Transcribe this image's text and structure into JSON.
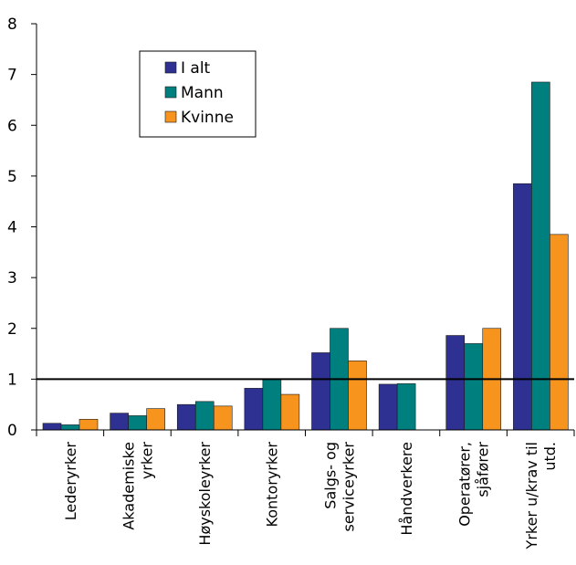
{
  "chart_data": {
    "type": "bar",
    "categories": [
      [
        "Lederyrker"
      ],
      [
        "Akademiske",
        "yrker"
      ],
      [
        "Høyskoleyrker"
      ],
      [
        "Kontoryrker"
      ],
      [
        "Salgs- og",
        "serviceyrker"
      ],
      [
        "Håndverkere"
      ],
      [
        "Operatører,",
        "sjåfører"
      ],
      [
        "Yrker u/krav til",
        "utd."
      ]
    ],
    "series": [
      {
        "name": "I alt",
        "color": "#2E3192",
        "values": [
          0.13,
          0.33,
          0.5,
          0.82,
          1.52,
          0.9,
          1.86,
          4.85
        ]
      },
      {
        "name": "Mann",
        "color": "#007F7F",
        "values": [
          0.1,
          0.28,
          0.56,
          1.01,
          2.0,
          0.91,
          1.7,
          6.85
        ]
      },
      {
        "name": "Kvinne",
        "color": "#F7941D",
        "values": [
          0.21,
          0.42,
          0.47,
          0.7,
          1.36,
          null,
          2.0,
          3.85
        ]
      }
    ],
    "reference_line": 1,
    "ylim": [
      0,
      8
    ],
    "yticks": [
      "0",
      "1",
      "2",
      "3",
      "4",
      "5",
      "6",
      "7",
      "8"
    ],
    "title": "",
    "xlabel": "",
    "ylabel": "",
    "legend_position": "top-left",
    "grid": false
  }
}
